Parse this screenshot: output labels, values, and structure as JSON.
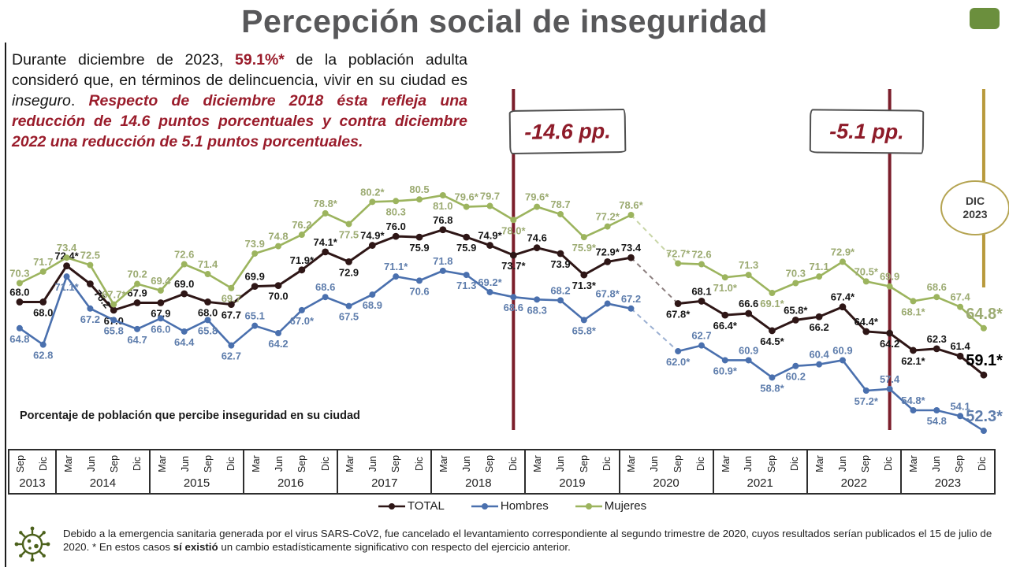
{
  "title": "Percepción social de inseguridad",
  "intro": {
    "segments": [
      {
        "text": "Durante diciembre de 2023, ",
        "style": "plain"
      },
      {
        "text": "59.1%*",
        "style": "accent-bold"
      },
      {
        "text": " de la población adulta consideró que, en términos de delincuencia, vivir en su ciudad es ",
        "style": "plain"
      },
      {
        "text": "inseguro",
        "style": "plain-italic"
      },
      {
        "text": ".   ",
        "style": "plain"
      },
      {
        "text": "Respecto de diciembre 2018 ésta refleja una reducción de 14.6 puntos porcentuales y contra diciembre 2022 una reducción de 5.1 puntos porcentuales.",
        "style": "accent-bold-italic"
      }
    ]
  },
  "caption": "Porcentaje de población que percibe inseguridad en su ciudad",
  "chart_data": {
    "type": "line",
    "unit": "percent of adult urban population",
    "ylim": [
      50,
      83
    ],
    "grid": false,
    "missing_period": "Jun 2020 (survey cancelled)",
    "x_axis": {
      "year_blocks": [
        {
          "year": "2013",
          "quarters": [
            "Sep",
            "Dic"
          ]
        },
        {
          "year": "2014",
          "quarters": [
            "Mar",
            "Jun",
            "Sep",
            "Dic"
          ]
        },
        {
          "year": "2015",
          "quarters": [
            "Mar",
            "Jun",
            "Sep",
            "Dic"
          ]
        },
        {
          "year": "2016",
          "quarters": [
            "Mar",
            "Jun",
            "Sep",
            "Dic"
          ]
        },
        {
          "year": "2017",
          "quarters": [
            "Mar",
            "Jun",
            "Sep",
            "Dic"
          ]
        },
        {
          "year": "2018",
          "quarters": [
            "Mar",
            "Jun",
            "Sep",
            "Dic"
          ]
        },
        {
          "year": "2019",
          "quarters": [
            "Mar",
            "Jun",
            "Sep",
            "Dic"
          ]
        },
        {
          "year": "2020",
          "quarters": [
            "Mar",
            "Jun",
            "Sep",
            "Dic"
          ]
        },
        {
          "year": "2021",
          "quarters": [
            "Mar",
            "Jun",
            "Sep",
            "Dic"
          ]
        },
        {
          "year": "2022",
          "quarters": [
            "Mar",
            "Jun",
            "Sep",
            "Dic"
          ]
        },
        {
          "year": "2023",
          "quarters": [
            "Mar",
            "Jun",
            "Sep",
            "Dic"
          ]
        }
      ]
    },
    "series": [
      {
        "name": "TOTAL",
        "color": "#2e1616",
        "label_color": "#151515",
        "values": [
          68.0,
          68.0,
          72.4,
          70.2,
          67.0,
          67.9,
          67.9,
          69.0,
          68.0,
          67.7,
          69.9,
          70.0,
          71.9,
          74.1,
          72.9,
          74.9,
          76.0,
          75.9,
          76.8,
          75.9,
          74.9,
          73.7,
          74.6,
          73.9,
          71.3,
          72.9,
          73.4,
          null,
          67.8,
          68.1,
          66.4,
          66.6,
          64.5,
          65.8,
          66.2,
          67.4,
          64.4,
          64.2,
          62.1,
          62.3,
          61.4,
          59.1
        ],
        "point_labels": [
          "68.0",
          "68.0",
          "72.4*",
          "70.2",
          "67.0",
          "67.9",
          "67.9",
          "69.0",
          "68.0",
          "67.7",
          "69.9",
          "70.0",
          "71.9*",
          "74.1*",
          "72.9",
          "74.9*",
          "76.0",
          "75.9",
          "76.8",
          "75.9",
          "74.9*",
          "73.7*",
          "74.6",
          "73.9",
          "71.3*",
          "72.9*",
          "73.4",
          null,
          "67.8*",
          "68.1",
          "66.4*",
          "66.6",
          "64.5*",
          "65.8*",
          "66.2",
          "67.4*",
          "64.4*",
          "64.2",
          "62.1*",
          "62.3",
          "61.4",
          "59.1*"
        ],
        "label_side": [
          "a",
          "b",
          "a",
          "r",
          "b",
          "a",
          "b",
          "a",
          "b",
          "b",
          "a",
          "b",
          "a",
          "a",
          "b",
          "a",
          "a",
          "b",
          "a",
          "b",
          "a",
          "b",
          "a",
          "b",
          "b",
          "a",
          "a",
          null,
          "b",
          "a",
          "b",
          "a",
          "b",
          "a",
          "b",
          "a",
          "a",
          "b",
          "b",
          "a",
          "a",
          "a"
        ]
      },
      {
        "name": "Hombres",
        "color": "#4a70ae",
        "label_color": "#5e7dac",
        "values": [
          64.8,
          62.8,
          71.1,
          67.2,
          65.8,
          64.7,
          66.0,
          64.4,
          65.8,
          62.7,
          65.1,
          64.2,
          67.0,
          68.6,
          67.5,
          68.9,
          71.1,
          70.6,
          71.8,
          71.3,
          69.2,
          68.6,
          68.3,
          68.2,
          65.8,
          67.8,
          67.2,
          null,
          62.0,
          62.7,
          60.9,
          60.9,
          58.8,
          60.2,
          60.4,
          60.9,
          57.2,
          57.4,
          54.8,
          54.8,
          54.1,
          52.3
        ],
        "point_labels": [
          "64.8",
          "62.8",
          "71.1*",
          "67.2",
          "65.8",
          "64.7",
          "66.0",
          "64.4",
          "65.8",
          "62.7",
          "65.1",
          "64.2",
          "67.0*",
          "68.6",
          "67.5",
          "68.9",
          "71.1*",
          "70.6",
          "71.8",
          "71.3",
          "69.2*",
          "68.6",
          "68.3",
          "68.2",
          "65.8*",
          "67.8*",
          "67.2",
          null,
          "62.0*",
          "62.7",
          "60.9*",
          "60.9",
          "58.8*",
          "60.2",
          "60.4",
          "60.9",
          "57.2*",
          "57.4",
          "54.8*",
          "54.8",
          "54.1",
          "52.3*"
        ],
        "label_side": [
          "b",
          "b",
          "b",
          "b",
          "b",
          "b",
          "b",
          "b",
          "b",
          "b",
          "a",
          "b",
          "b",
          "a",
          "b",
          "b",
          "a",
          "b",
          "a",
          "b",
          "a",
          "b",
          "b",
          "a",
          "b",
          "a",
          "a",
          null,
          "b",
          "a",
          "b",
          "a",
          "b",
          "b",
          "a",
          "a",
          "b",
          "a",
          "a",
          "b",
          "a",
          "a"
        ]
      },
      {
        "name": "Mujeres",
        "color": "#9cb45e",
        "label_color": "#9cab72",
        "values": [
          70.3,
          71.7,
          73.4,
          72.5,
          67.7,
          70.2,
          69.4,
          72.6,
          71.4,
          69.7,
          73.9,
          74.8,
          76.2,
          78.8,
          77.5,
          80.2,
          80.3,
          80.5,
          81.0,
          79.6,
          79.7,
          78.0,
          79.6,
          78.7,
          75.9,
          77.2,
          78.6,
          null,
          72.7,
          72.6,
          71.0,
          71.3,
          69.1,
          70.3,
          71.1,
          72.9,
          70.5,
          69.9,
          68.1,
          68.6,
          67.4,
          64.8
        ],
        "point_labels": [
          "70.3",
          "71.7",
          "73.4",
          "72.5",
          "67.7*",
          "70.2",
          "69.4",
          "72.6",
          "71.4",
          "69.7",
          "73.9",
          "74.8",
          "76.2",
          "78.8*",
          "77.5",
          "80.2*",
          "80.3",
          "80.5",
          "81.0",
          "79.6*",
          "79.7",
          "78.0*",
          "79.6*",
          "78.7",
          "75.9*",
          "77.2*",
          "78.6*",
          null,
          "72.7*",
          "72.6",
          "71.0*",
          "71.3",
          "69.1*",
          "70.3",
          "71.1",
          "72.9*",
          "70.5*",
          "69.9",
          "68.1*",
          "68.6",
          "67.4",
          "64.8*"
        ],
        "label_side": [
          "a",
          "a",
          "a",
          "a",
          "a",
          "a",
          "a",
          "a",
          "a",
          "b",
          "a",
          "a",
          "a",
          "a",
          "b",
          "a",
          "b",
          "a",
          "b",
          "a",
          "a",
          "b",
          "a",
          "a",
          "b",
          "a",
          "a",
          null,
          "a",
          "a",
          "b",
          "a",
          "b",
          "a",
          "a",
          "a",
          "a",
          "a",
          "b",
          "a",
          "a",
          "a"
        ]
      }
    ],
    "annotations": {
      "drop_2018": {
        "label": "-14.6 pp.",
        "at": "Dic 2018"
      },
      "drop_2022": {
        "label": "-5.1 pp.",
        "at": "Dic 2022"
      },
      "badge": {
        "line1": "DIC",
        "line2": "2023",
        "at": "Dic 2023"
      }
    }
  },
  "legend": {
    "items": [
      "TOTAL",
      "Hombres",
      "Mujeres"
    ]
  },
  "footer": {
    "icon": "virus-icon",
    "segments": [
      {
        "text": "Debido a la emergencia sanitaria generada por el virus SARS-CoV2, fue cancelado el levantamiento correspondiente al segundo trimestre de 2020, cuyos resultados serían publicados el 15 de julio de 2020. * En estos casos ",
        "bold": false
      },
      {
        "text": "sí existió",
        "bold": true
      },
      {
        "text": " un cambio estadísticamente significativo con respecto del ejercicio anterior.",
        "bold": false
      }
    ]
  },
  "colors": {
    "accent_red": "#9a1c2b",
    "title_gray": "#58585a",
    "vline_maroon": "#7b1e2b",
    "vline_gold": "#b8993b",
    "green_chip": "#6b8f3d",
    "virus_icon": "#4c611c"
  }
}
